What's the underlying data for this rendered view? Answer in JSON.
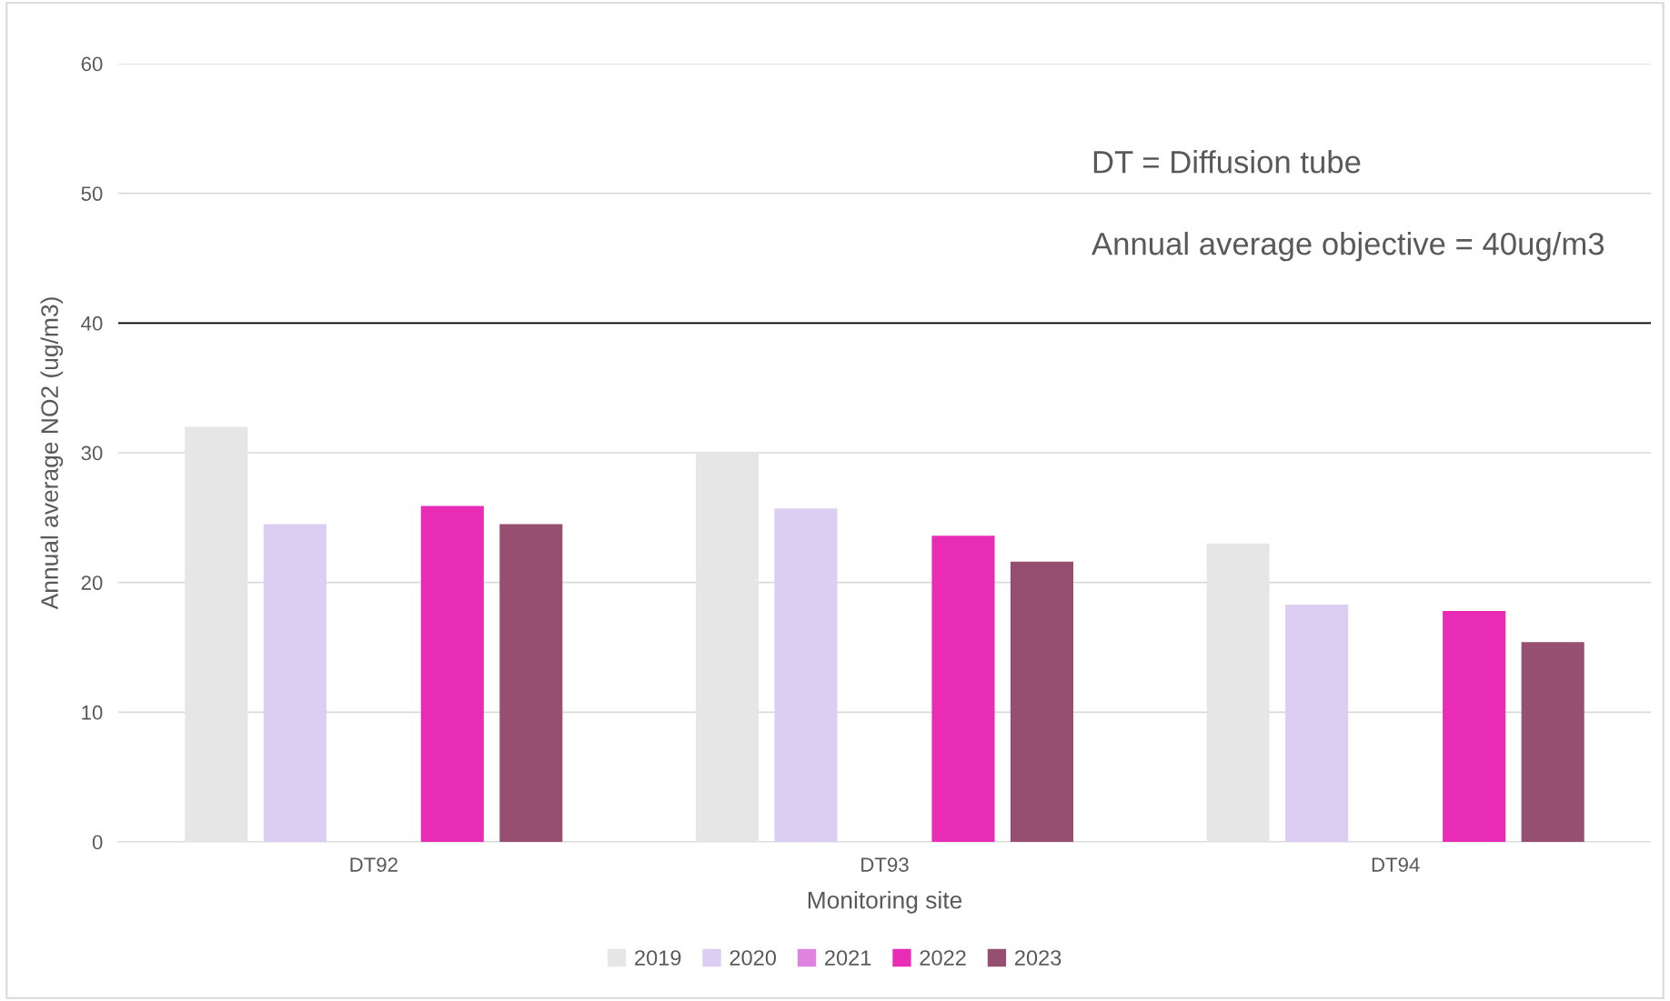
{
  "chart_data": {
    "type": "bar",
    "xlabel": "Monitoring site",
    "ylabel": "Annual average NO2 (ug/m3)",
    "categories": [
      "DT92",
      "DT93",
      "DT94"
    ],
    "series": [
      {
        "name": "2019",
        "color": "#e6e6e6",
        "values": [
          32,
          30,
          23
        ]
      },
      {
        "name": "2020",
        "color": "#dccdf2",
        "values": [
          24.5,
          25.7,
          18.3
        ]
      },
      {
        "name": "2021",
        "color": "#e082e0",
        "values": [
          null,
          null,
          null
        ]
      },
      {
        "name": "2022",
        "color": "#e82cb6",
        "values": [
          25.9,
          23.6,
          17.8
        ]
      },
      {
        "name": "2023",
        "color": "#964f70",
        "values": [
          24.5,
          21.6,
          15.4
        ]
      }
    ],
    "ylim": [
      0,
      60
    ],
    "yticks": [
      0,
      10,
      20,
      30,
      40,
      50,
      60
    ],
    "grid": "y",
    "legend": "bottom",
    "ref_lines": [
      {
        "axis": "y",
        "value": 40,
        "color": "#000000"
      }
    ],
    "annotations": [
      "DT = Diffusion tube",
      "Annual average objective = 40ug/m3"
    ]
  }
}
